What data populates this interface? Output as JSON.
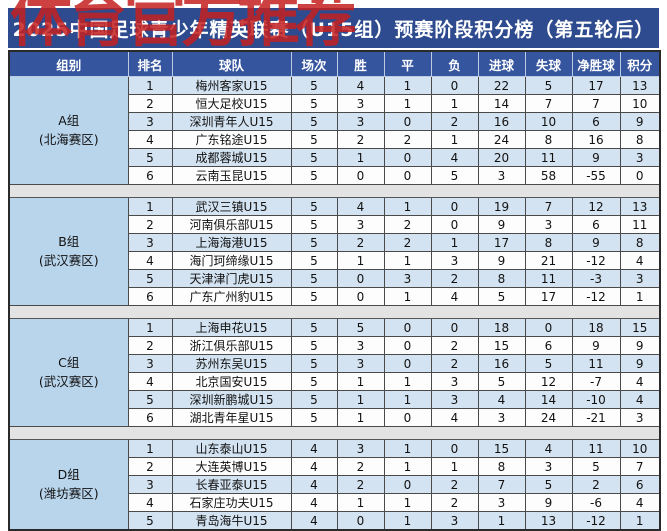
{
  "watermark": "体育官方推荐",
  "title": "2025中国足球青少年精英联赛（U15组）预赛阶段积分榜（第五轮后）",
  "columns": [
    "组别",
    "排名",
    "球队",
    "场次",
    "胜",
    "平",
    "负",
    "进球",
    "失球",
    "净胜球",
    "积分"
  ],
  "column_keys": [
    "rank",
    "team",
    "played",
    "win",
    "draw",
    "loss",
    "gf",
    "ga",
    "gd",
    "pts"
  ],
  "groups": [
    {
      "name": "A组",
      "venue": "(北海赛区)",
      "teams": [
        {
          "rank": "1",
          "team": "梅州客家U15",
          "played": "5",
          "win": "4",
          "draw": "1",
          "loss": "0",
          "gf": "22",
          "ga": "5",
          "gd": "17",
          "pts": "13"
        },
        {
          "rank": "2",
          "team": "恒大足校U15",
          "played": "5",
          "win": "3",
          "draw": "1",
          "loss": "1",
          "gf": "14",
          "ga": "7",
          "gd": "7",
          "pts": "10"
        },
        {
          "rank": "3",
          "team": "深圳青年人U15",
          "played": "5",
          "win": "3",
          "draw": "0",
          "loss": "2",
          "gf": "16",
          "ga": "10",
          "gd": "6",
          "pts": "9"
        },
        {
          "rank": "4",
          "team": "广东铭途U15",
          "played": "5",
          "win": "2",
          "draw": "2",
          "loss": "1",
          "gf": "24",
          "ga": "8",
          "gd": "16",
          "pts": "8"
        },
        {
          "rank": "5",
          "team": "成都蓉城U15",
          "played": "5",
          "win": "1",
          "draw": "0",
          "loss": "4",
          "gf": "20",
          "ga": "11",
          "gd": "9",
          "pts": "3"
        },
        {
          "rank": "6",
          "team": "云南玉昆U15",
          "played": "5",
          "win": "0",
          "draw": "0",
          "loss": "5",
          "gf": "3",
          "ga": "58",
          "gd": "-55",
          "pts": "0"
        }
      ]
    },
    {
      "name": "B组",
      "venue": "(武汉赛区)",
      "teams": [
        {
          "rank": "1",
          "team": "武汉三镇U15",
          "played": "5",
          "win": "4",
          "draw": "1",
          "loss": "0",
          "gf": "19",
          "ga": "7",
          "gd": "12",
          "pts": "13"
        },
        {
          "rank": "2",
          "team": "河南俱乐部U15",
          "played": "5",
          "win": "3",
          "draw": "2",
          "loss": "0",
          "gf": "9",
          "ga": "3",
          "gd": "6",
          "pts": "11"
        },
        {
          "rank": "3",
          "team": "上海海港U15",
          "played": "5",
          "win": "2",
          "draw": "2",
          "loss": "1",
          "gf": "17",
          "ga": "8",
          "gd": "9",
          "pts": "8"
        },
        {
          "rank": "4",
          "team": "海门珂缔缘U15",
          "played": "5",
          "win": "1",
          "draw": "1",
          "loss": "3",
          "gf": "9",
          "ga": "21",
          "gd": "-12",
          "pts": "4"
        },
        {
          "rank": "5",
          "team": "天津津门虎U15",
          "played": "5",
          "win": "0",
          "draw": "3",
          "loss": "2",
          "gf": "8",
          "ga": "11",
          "gd": "-3",
          "pts": "3"
        },
        {
          "rank": "6",
          "team": "广东广州豹U15",
          "played": "5",
          "win": "0",
          "draw": "1",
          "loss": "4",
          "gf": "5",
          "ga": "17",
          "gd": "-12",
          "pts": "1"
        }
      ]
    },
    {
      "name": "C组",
      "venue": "(武汉赛区)",
      "teams": [
        {
          "rank": "1",
          "team": "上海申花U15",
          "played": "5",
          "win": "5",
          "draw": "0",
          "loss": "0",
          "gf": "18",
          "ga": "0",
          "gd": "18",
          "pts": "15"
        },
        {
          "rank": "2",
          "team": "浙江俱乐部U15",
          "played": "5",
          "win": "3",
          "draw": "0",
          "loss": "2",
          "gf": "15",
          "ga": "6",
          "gd": "9",
          "pts": "9"
        },
        {
          "rank": "3",
          "team": "苏州东吴U15",
          "played": "5",
          "win": "3",
          "draw": "0",
          "loss": "2",
          "gf": "16",
          "ga": "5",
          "gd": "11",
          "pts": "9"
        },
        {
          "rank": "4",
          "team": "北京国安U15",
          "played": "5",
          "win": "1",
          "draw": "1",
          "loss": "3",
          "gf": "5",
          "ga": "12",
          "gd": "-7",
          "pts": "4"
        },
        {
          "rank": "5",
          "team": "深圳新鹏城U15",
          "played": "5",
          "win": "1",
          "draw": "1",
          "loss": "3",
          "gf": "4",
          "ga": "14",
          "gd": "-10",
          "pts": "4"
        },
        {
          "rank": "6",
          "team": "湖北青年星U15",
          "played": "5",
          "win": "1",
          "draw": "0",
          "loss": "4",
          "gf": "3",
          "ga": "24",
          "gd": "-21",
          "pts": "3"
        }
      ]
    },
    {
      "name": "D组",
      "venue": "(潍坊赛区)",
      "teams": [
        {
          "rank": "1",
          "team": "山东泰山U15",
          "played": "4",
          "win": "3",
          "draw": "1",
          "loss": "0",
          "gf": "15",
          "ga": "4",
          "gd": "11",
          "pts": "10"
        },
        {
          "rank": "2",
          "team": "大连英博U15",
          "played": "4",
          "win": "2",
          "draw": "1",
          "loss": "1",
          "gf": "8",
          "ga": "3",
          "gd": "5",
          "pts": "7"
        },
        {
          "rank": "3",
          "team": "长春亚泰U15",
          "played": "4",
          "win": "2",
          "draw": "0",
          "loss": "2",
          "gf": "7",
          "ga": "5",
          "gd": "2",
          "pts": "6"
        },
        {
          "rank": "4",
          "team": "石家庄功夫U15",
          "played": "4",
          "win": "1",
          "draw": "1",
          "loss": "2",
          "gf": "3",
          "ga": "9",
          "gd": "-6",
          "pts": "4"
        },
        {
          "rank": "5",
          "team": "青岛海牛U15",
          "played": "4",
          "win": "0",
          "draw": "1",
          "loss": "3",
          "gf": "1",
          "ga": "13",
          "gd": "-12",
          "pts": "1"
        }
      ]
    }
  ],
  "colors": {
    "title_bar": "#2d4b8e",
    "header_row": "#35559e",
    "row_alt": "#d4e3f1",
    "group_cell": "#b9d5ec",
    "separator": "#e3e3e3",
    "watermark_red": "#c62020"
  }
}
